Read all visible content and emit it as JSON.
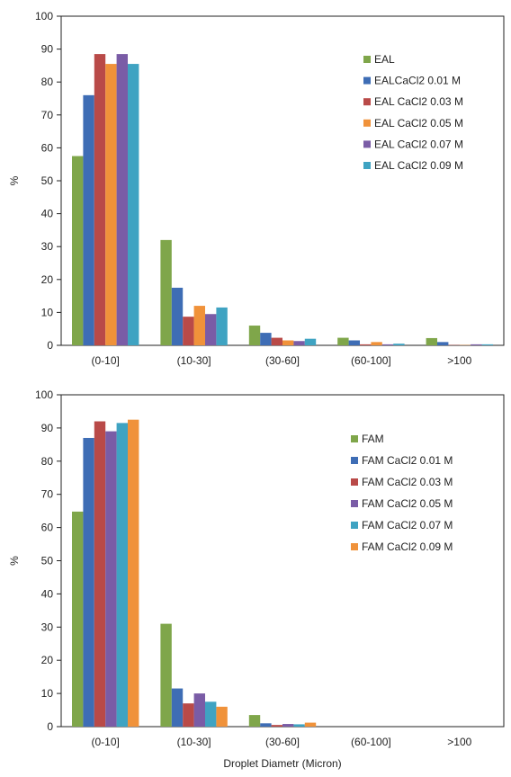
{
  "chart_data": [
    {
      "type": "bar",
      "title": "",
      "xlabel": "",
      "ylabel": "%",
      "ylim": [
        0,
        100
      ],
      "yticks": [
        0,
        10,
        20,
        30,
        40,
        50,
        60,
        70,
        80,
        90,
        100
      ],
      "categories": [
        "(0-10]",
        "(10-30]",
        "(30-60]",
        "(60-100]",
        ">100"
      ],
      "legend_position": "right",
      "grid": false,
      "series": [
        {
          "name": "EAL",
          "color": "#7fa64a",
          "values": [
            57.5,
            32,
            6,
            2.3,
            2.2
          ]
        },
        {
          "name": "EALCaCl2 0.01 M",
          "color": "#3e6db5",
          "values": [
            76,
            17.5,
            3.8,
            1.5,
            1.0
          ]
        },
        {
          "name": "EAL CaCl2 0.03 M",
          "color": "#b94a48",
          "values": [
            88.5,
            8.7,
            2.3,
            0.3,
            0.1
          ]
        },
        {
          "name": "EAL CaCl2 0.05 M",
          "color": "#f0923a",
          "values": [
            85.5,
            12,
            1.5,
            1.0,
            0.1
          ]
        },
        {
          "name": "EAL CaCl2 0.07 M",
          "color": "#7a5ca6",
          "values": [
            88.5,
            9.5,
            1.3,
            0.3,
            0.3
          ]
        },
        {
          "name": "EAL CaCl2 0.09 M",
          "color": "#3fa3c2",
          "values": [
            85.5,
            11.5,
            2.0,
            0.5,
            0.3
          ]
        }
      ]
    },
    {
      "type": "bar",
      "title": "",
      "xlabel": "Droplet Diametr (Micron)",
      "ylabel": "%",
      "ylim": [
        0,
        100
      ],
      "yticks": [
        0,
        10,
        20,
        30,
        40,
        50,
        60,
        70,
        80,
        90,
        100
      ],
      "categories": [
        "(0-10]",
        "(10-30]",
        "(30-60]",
        "(60-100]",
        ">100"
      ],
      "legend_position": "right",
      "grid": false,
      "series": [
        {
          "name": "FAM",
          "color": "#7fa64a",
          "values": [
            64.8,
            31,
            3.5,
            0,
            0
          ]
        },
        {
          "name": "FAM CaCl2 0.01 M",
          "color": "#3e6db5",
          "values": [
            87,
            11.5,
            1.0,
            0,
            0
          ]
        },
        {
          "name": "FAM CaCl2 0.03 M",
          "color": "#b94a48",
          "values": [
            92,
            7,
            0.5,
            0,
            0
          ]
        },
        {
          "name": "FAM CaCl2 0.05 M",
          "color": "#7a5ca6",
          "values": [
            89,
            10,
            0.8,
            0,
            0
          ]
        },
        {
          "name": "FAM CaCl2 0.07 M",
          "color": "#3fa3c2",
          "values": [
            91.5,
            7.5,
            0.7,
            0,
            0
          ]
        },
        {
          "name": "FAM CaCl2 0.09 M",
          "color": "#f0923a",
          "values": [
            92.5,
            6,
            1.2,
            0,
            0
          ]
        }
      ]
    }
  ]
}
